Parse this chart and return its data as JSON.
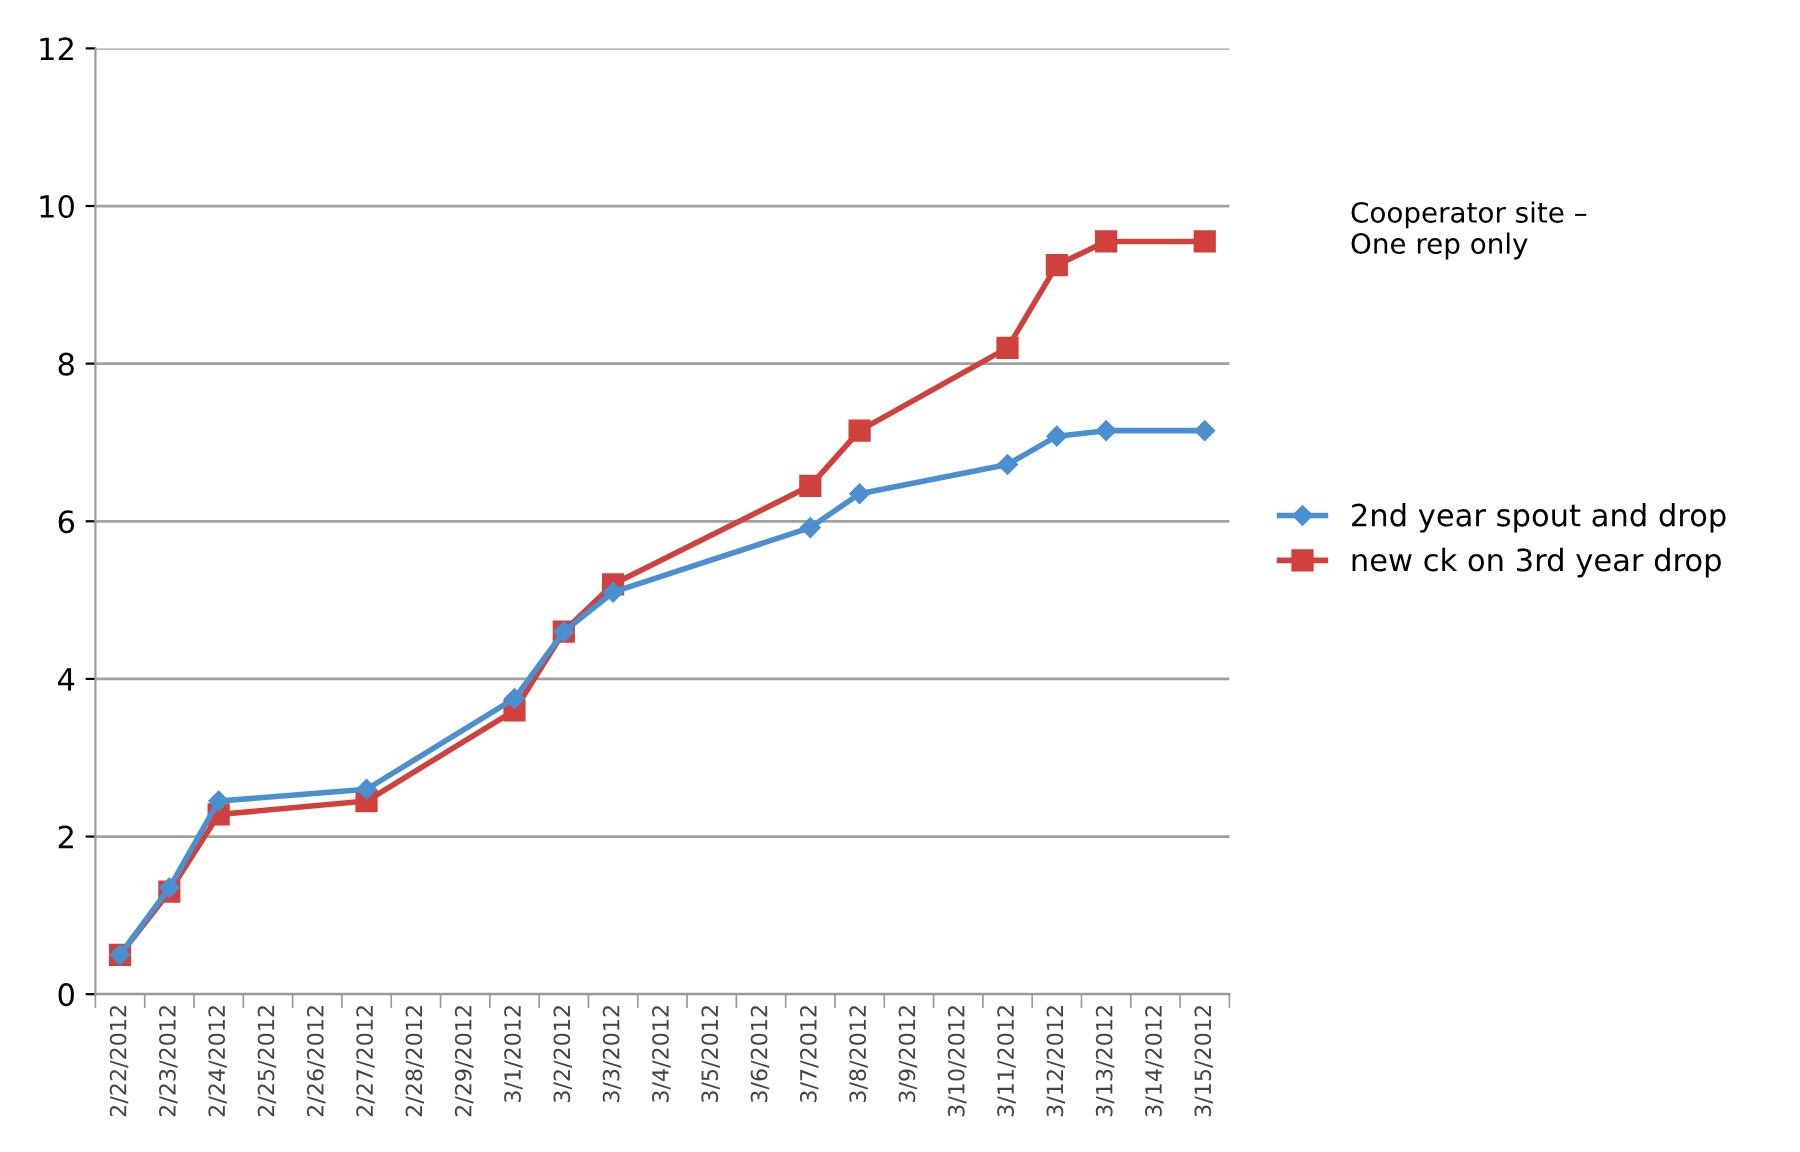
{
  "chart_data": {
    "type": "line",
    "categories": [
      "2/22/2012",
      "2/23/2012",
      "2/24/2012",
      "2/25/2012",
      "2/26/2012",
      "2/27/2012",
      "2/28/2012",
      "2/29/2012",
      "3/1/2012",
      "3/2/2012",
      "3/3/2012",
      "3/4/2012",
      "3/5/2012",
      "3/6/2012",
      "3/7/2012",
      "3/8/2012",
      "3/9/2012",
      "3/10/2012",
      "3/11/2012",
      "3/12/2012",
      "3/13/2012",
      "3/14/2012",
      "3/15/2012"
    ],
    "series": [
      {
        "name": "2nd year spout and drop",
        "color": "#4a90d0",
        "marker": "diamond",
        "values": [
          0.5,
          1.35,
          2.45,
          null,
          null,
          2.6,
          null,
          null,
          3.75,
          4.6,
          5.1,
          null,
          null,
          null,
          5.92,
          6.35,
          null,
          null,
          6.72,
          7.08,
          7.15,
          null,
          7.15
        ]
      },
      {
        "name": "new ck on 3rd year drop",
        "color": "#d0413e",
        "marker": "square",
        "values": [
          0.5,
          1.3,
          2.28,
          null,
          null,
          2.45,
          null,
          null,
          3.6,
          4.6,
          5.2,
          null,
          null,
          null,
          6.45,
          7.15,
          null,
          null,
          8.2,
          9.25,
          9.55,
          null,
          9.55
        ]
      }
    ],
    "ylim": [
      0,
      12
    ],
    "yticks": [
      0,
      2,
      4,
      6,
      8,
      10,
      12
    ],
    "grid": "y",
    "legend": "right",
    "annotations": [
      "Cooperator site –\nOne rep only"
    ]
  }
}
